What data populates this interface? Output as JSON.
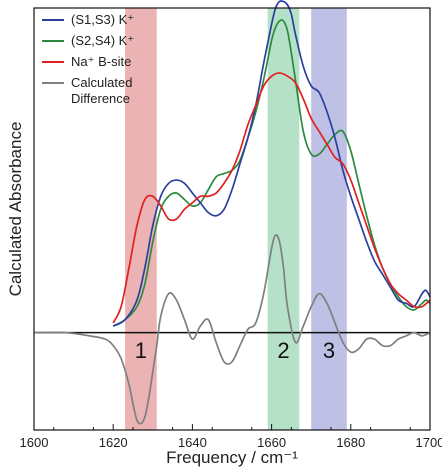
{
  "chart_data": {
    "type": "line",
    "xlabel": "Frequency / cm⁻¹",
    "ylabel": "Calculated Absorbance",
    "xlim": [
      1600,
      1700
    ],
    "ylim": [
      -0.3,
      1.0
    ],
    "xticks": [
      1600,
      1620,
      1640,
      1660,
      1680,
      1700
    ],
    "legend_position": "top-left",
    "zero_line": 0,
    "bands": [
      {
        "label": "1",
        "x0": 1623,
        "x1": 1631,
        "color": "#e8a6a6"
      },
      {
        "label": "2",
        "x0": 1659,
        "x1": 1667,
        "color": "#a8dcc0"
      },
      {
        "label": "3",
        "x0": 1670,
        "x1": 1679,
        "color": "#b3b5e0"
      }
    ],
    "series": [
      {
        "name": "(S1,S3) K⁺",
        "color": "#2b3f9e",
        "x": [
          1620,
          1623,
          1626,
          1628,
          1630,
          1632,
          1634,
          1636,
          1638,
          1640,
          1642,
          1644,
          1646,
          1648,
          1650,
          1652,
          1654,
          1656,
          1658,
          1660,
          1661,
          1662,
          1663,
          1664,
          1665,
          1666,
          1668,
          1670,
          1672,
          1674,
          1676,
          1678,
          1680,
          1682,
          1684,
          1686,
          1688,
          1690,
          1692,
          1694,
          1696,
          1698,
          1699,
          1700
        ],
        "y": [
          0.02,
          0.04,
          0.1,
          0.2,
          0.33,
          0.42,
          0.46,
          0.47,
          0.46,
          0.43,
          0.4,
          0.37,
          0.36,
          0.38,
          0.44,
          0.52,
          0.6,
          0.7,
          0.83,
          0.95,
          1.0,
          1.02,
          1.02,
          1.01,
          0.98,
          0.92,
          0.82,
          0.76,
          0.74,
          0.68,
          0.6,
          0.5,
          0.42,
          0.35,
          0.28,
          0.22,
          0.18,
          0.14,
          0.1,
          0.09,
          0.08,
          0.12,
          0.13,
          0.11
        ]
      },
      {
        "name": "(S2,S4) K⁺",
        "color": "#2b8a3e",
        "x": [
          1620,
          1623,
          1626,
          1628,
          1630,
          1632,
          1634,
          1636,
          1638,
          1640,
          1642,
          1644,
          1646,
          1648,
          1650,
          1652,
          1654,
          1656,
          1658,
          1660,
          1661,
          1662,
          1663,
          1664,
          1665,
          1666,
          1668,
          1670,
          1672,
          1674,
          1676,
          1678,
          1680,
          1682,
          1684,
          1686,
          1688,
          1690,
          1692,
          1694,
          1696,
          1698,
          1699,
          1700
        ],
        "y": [
          0.02,
          0.04,
          0.08,
          0.15,
          0.28,
          0.38,
          0.42,
          0.43,
          0.41,
          0.39,
          0.4,
          0.44,
          0.48,
          0.49,
          0.5,
          0.53,
          0.6,
          0.68,
          0.78,
          0.9,
          0.94,
          0.96,
          0.96,
          0.93,
          0.86,
          0.78,
          0.62,
          0.55,
          0.55,
          0.58,
          0.61,
          0.62,
          0.56,
          0.46,
          0.36,
          0.27,
          0.2,
          0.15,
          0.11,
          0.08,
          0.07,
          0.09,
          0.1,
          0.09
        ]
      },
      {
        "name": "Na⁺ B-site",
        "color": "#e02020",
        "x": [
          1620,
          1622,
          1624,
          1626,
          1628,
          1630,
          1632,
          1634,
          1636,
          1638,
          1640,
          1642,
          1644,
          1646,
          1648,
          1650,
          1652,
          1654,
          1656,
          1658,
          1660,
          1662,
          1664,
          1666,
          1668,
          1670,
          1672,
          1674,
          1676,
          1678,
          1680,
          1682,
          1684,
          1686,
          1688,
          1690,
          1692,
          1694,
          1696,
          1698,
          1700
        ],
        "y": [
          0.03,
          0.08,
          0.2,
          0.33,
          0.41,
          0.42,
          0.39,
          0.35,
          0.35,
          0.38,
          0.4,
          0.42,
          0.42,
          0.43,
          0.46,
          0.5,
          0.56,
          0.64,
          0.7,
          0.76,
          0.79,
          0.8,
          0.79,
          0.77,
          0.72,
          0.66,
          0.62,
          0.58,
          0.54,
          0.52,
          0.47,
          0.4,
          0.33,
          0.26,
          0.2,
          0.15,
          0.12,
          0.1,
          0.08,
          0.08,
          0.1
        ]
      },
      {
        "name": "Calculated Difference",
        "color": "#7f7f7f",
        "x": [
          1600,
          1608,
          1614,
          1618,
          1620,
          1622,
          1624,
          1625,
          1626,
          1627,
          1628,
          1629,
          1630,
          1631,
          1632,
          1634,
          1636,
          1638,
          1640,
          1642,
          1644,
          1646,
          1648,
          1650,
          1652,
          1654,
          1656,
          1658,
          1660,
          1661,
          1662,
          1663,
          1664,
          1666,
          1668,
          1670,
          1672,
          1674,
          1676,
          1678,
          1680,
          1682,
          1684,
          1686,
          1688,
          1690,
          1692,
          1694,
          1696,
          1698,
          1700
        ],
        "y": [
          0.0,
          0.0,
          -0.01,
          -0.02,
          -0.04,
          -0.08,
          -0.16,
          -0.22,
          -0.27,
          -0.28,
          -0.26,
          -0.2,
          -0.12,
          -0.04,
          0.05,
          0.12,
          0.1,
          0.04,
          -0.02,
          0.02,
          0.04,
          -0.03,
          -0.09,
          -0.09,
          -0.04,
          0.01,
          0.03,
          0.12,
          0.26,
          0.3,
          0.28,
          0.2,
          0.08,
          -0.03,
          0.02,
          0.08,
          0.12,
          0.09,
          0.03,
          -0.03,
          -0.06,
          -0.05,
          -0.02,
          -0.02,
          -0.04,
          -0.04,
          -0.02,
          -0.01,
          0.0,
          -0.01,
          0.0
        ]
      }
    ]
  }
}
